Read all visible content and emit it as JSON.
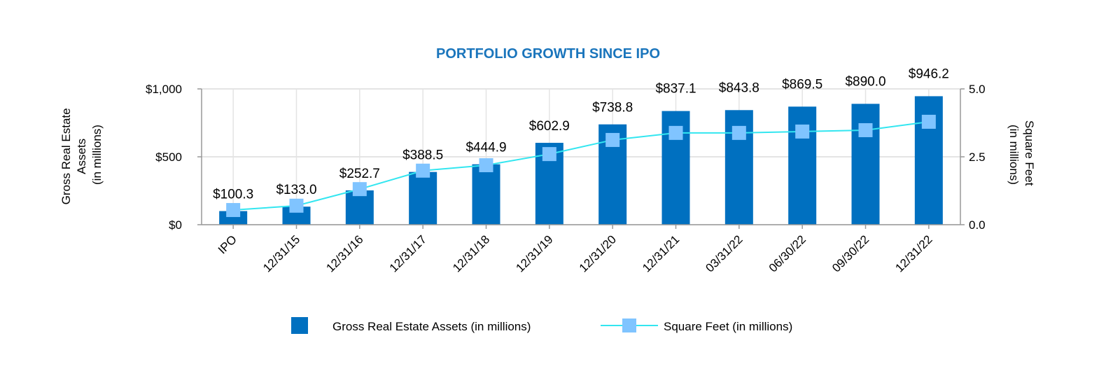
{
  "chart_data": {
    "type": "bar+line",
    "title": "PORTFOLIO GROWTH SINCE IPO",
    "categories": [
      "IPO",
      "12/31/15",
      "12/31/16",
      "12/31/17",
      "12/31/18",
      "12/31/19",
      "12/31/20",
      "12/31/21",
      "03/31/22",
      "06/30/22",
      "09/30/22",
      "12/31/22"
    ],
    "series": [
      {
        "name": "Gross Real Estate Assets (in millions)",
        "type": "bar",
        "axis": "left",
        "color": "#0070c0",
        "values": [
          100.3,
          133.0,
          252.7,
          388.5,
          444.9,
          602.9,
          738.8,
          837.1,
          843.8,
          869.5,
          890.0,
          946.2
        ],
        "labels": [
          "$100.3",
          "$133.0",
          "$252.7",
          "$388.5",
          "$444.9",
          "$602.9",
          "$738.8",
          "$837.1",
          "$843.8",
          "$869.5",
          "$890.0",
          "$946.2"
        ]
      },
      {
        "name": "Square Feet (in millions)",
        "type": "line",
        "axis": "right",
        "color": "#33e6f0",
        "marker_color": "#80c4ff",
        "values": [
          0.54,
          0.7,
          1.31,
          1.99,
          2.19,
          2.6,
          3.12,
          3.38,
          3.38,
          3.43,
          3.48,
          3.79
        ]
      }
    ],
    "y_left": {
      "label_lines": [
        "Gross Real Estate",
        "Assets",
        "(in millions)"
      ],
      "range": [
        0,
        1000
      ],
      "ticks": [
        0,
        500,
        1000
      ],
      "tick_labels": [
        "$0",
        "$500",
        "$1,000"
      ]
    },
    "y_right": {
      "label_lines": [
        "Square Feet",
        "(in millions)"
      ],
      "range": [
        0,
        5
      ],
      "ticks": [
        0,
        2.5,
        5
      ],
      "tick_labels": [
        "0.0",
        "2.5",
        "5.0"
      ]
    },
    "grid": true,
    "legend_position": "bottom"
  }
}
